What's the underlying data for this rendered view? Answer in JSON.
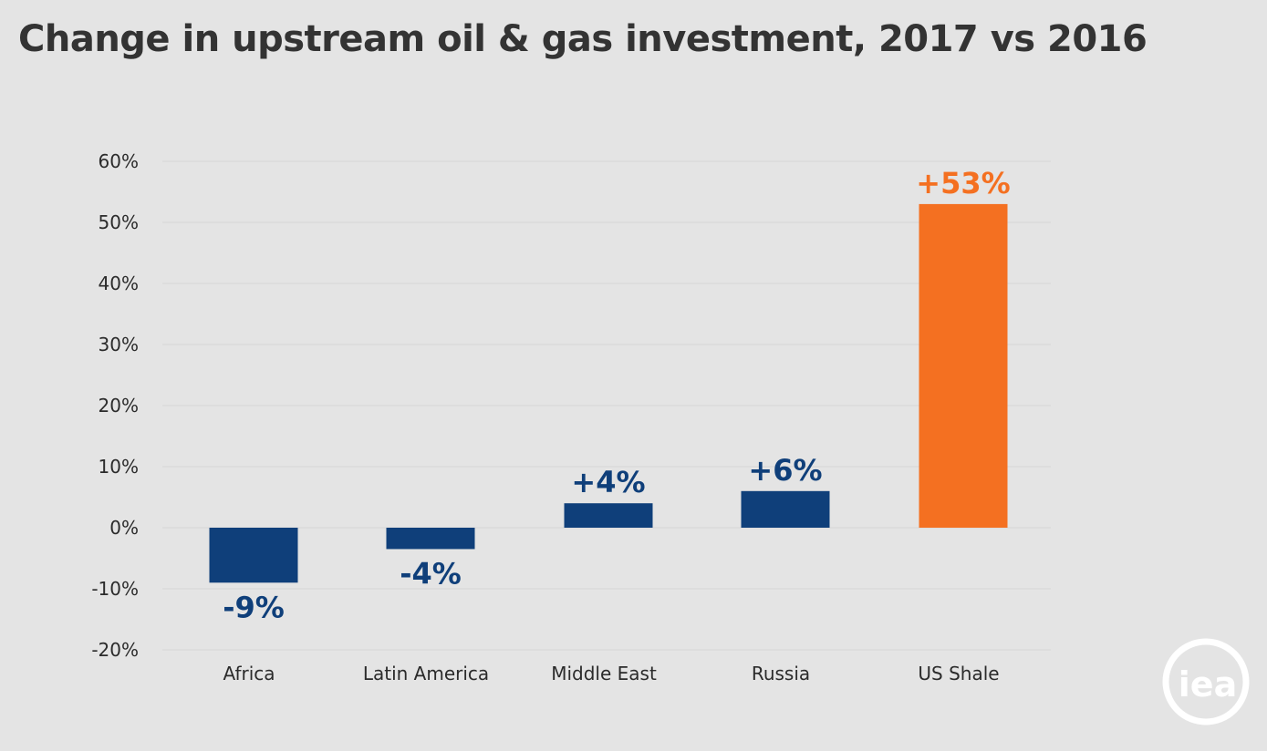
{
  "chart_data": {
    "type": "bar",
    "title": "Change in upstream oil & gas investment, 2017 vs 2016",
    "categories": [
      "Africa",
      "Latin America",
      "Middle East",
      "Russia",
      "US Shale"
    ],
    "values": [
      -9,
      -3.5,
      4,
      6,
      53
    ],
    "data_labels": [
      "-9%",
      "-4%",
      "+4%",
      "+6%",
      "+53%"
    ],
    "bar_colors": [
      "#0f3f7a",
      "#0f3f7a",
      "#0f3f7a",
      "#0f3f7a",
      "#f47021"
    ],
    "ylim": [
      -20,
      60
    ],
    "yticks": [
      60,
      50,
      40,
      30,
      20,
      10,
      0,
      -10,
      -20
    ],
    "ytick_labels": [
      "60%",
      "50%",
      "40%",
      "30%",
      "20%",
      "10%",
      "0%",
      "-10%",
      "-20%"
    ],
    "xlabel": "",
    "ylabel": "",
    "grid": true,
    "legend": "none"
  },
  "logo": {
    "text": "iea",
    "color": "#ffffff"
  }
}
